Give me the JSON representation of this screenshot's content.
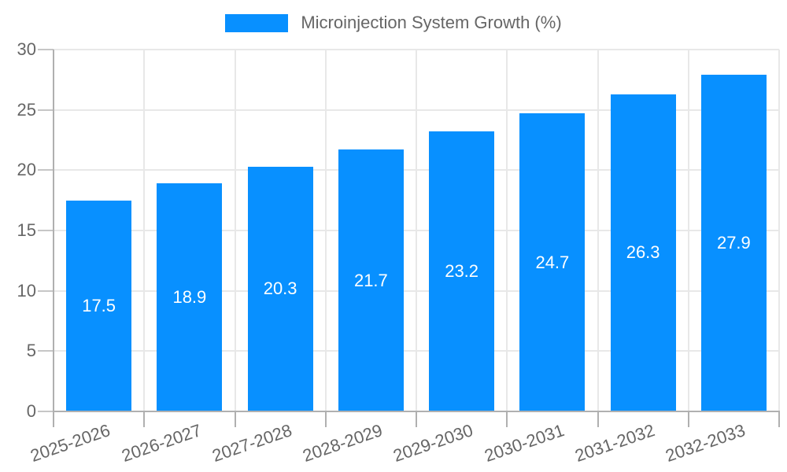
{
  "chart_data": {
    "type": "bar",
    "title": "Microinjection System Growth (%)",
    "categories": [
      "2025-2026",
      "2026-2027",
      "2027-2028",
      "2028-2029",
      "2029-2030",
      "2030-2031",
      "2031-2032",
      "2032-2033"
    ],
    "values": [
      17.5,
      18.9,
      20.3,
      21.7,
      23.2,
      24.7,
      26.3,
      27.9
    ],
    "value_labels": [
      "17.5",
      "18.9",
      "20.3",
      "21.7",
      "23.2",
      "24.7",
      "26.3",
      "27.9"
    ],
    "xlabel": "",
    "ylabel": "",
    "ylim": [
      0,
      30
    ],
    "yticks": [
      0,
      5,
      10,
      15,
      20,
      25,
      30
    ],
    "grid": true,
    "legend_position": "top",
    "colors": {
      "bar": "#0890ff",
      "value_label": "#ffffff",
      "tick_label": "#666666",
      "legend_label": "#666666",
      "grid_line": "#e8e8e8",
      "axis_line": "#b0b0b0",
      "y_tick_mark": "#c6c6c6",
      "background": "#ffffff"
    }
  }
}
